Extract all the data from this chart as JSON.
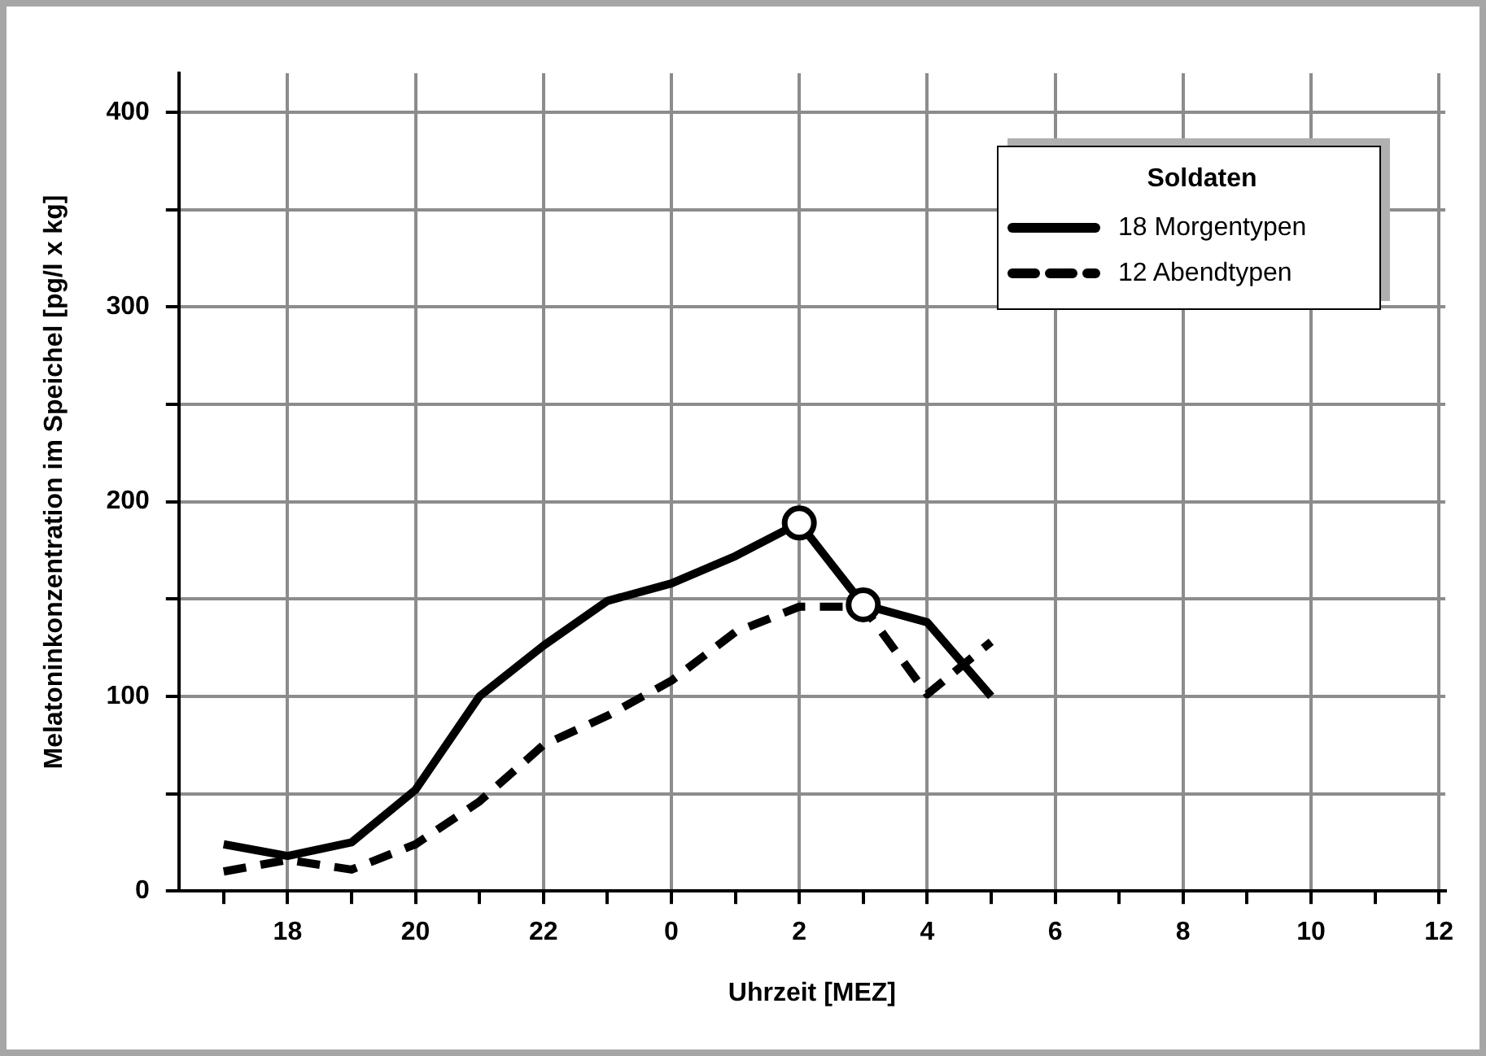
{
  "chart_data": {
    "type": "line",
    "xlabel": "Uhrzeit [MEZ]",
    "ylabel": "Melatoninkonzentration im Speichel [pg/l x kg]",
    "legend_title": "Soldaten",
    "legend": "top right",
    "grid": true,
    "marker": "none",
    "x": [
      "--01-01T17:00",
      "--01-01T18:00",
      "--01-01T19:00",
      "--01-01T20:00",
      "--01-01T21:00",
      "--01-01T22:00",
      "--01-01T23:00",
      "--01-02T00:00",
      "--01-02T01:00",
      "--01-02T02:00",
      "--01-02T03:00",
      "--01-02T04:00",
      "--01-02T05:00"
    ],
    "xlim": [
      "--01-01T16:18",
      "--01-02T12:06"
    ],
    "xticks": [
      {
        "value": "--01-01T17:00",
        "label": null
      },
      {
        "value": "--01-01T18:00",
        "label": "18"
      },
      {
        "value": "--01-01T19:00",
        "label": null
      },
      {
        "value": "--01-01T20:00",
        "label": "20"
      },
      {
        "value": "--01-01T21:00",
        "label": null
      },
      {
        "value": "--01-01T22:00",
        "label": "22"
      },
      {
        "value": "--01-01T23:00",
        "label": null
      },
      {
        "value": "--01-02T00:00",
        "label": "0"
      },
      {
        "value": "--01-02T01:00",
        "label": null
      },
      {
        "value": "--01-02T02:00",
        "label": "2"
      },
      {
        "value": "--01-02T03:00",
        "label": null
      },
      {
        "value": "--01-02T04:00",
        "label": "4"
      },
      {
        "value": "--01-02T05:00",
        "label": null
      },
      {
        "value": "--01-02T06:00",
        "label": "6"
      },
      {
        "value": "--01-02T07:00",
        "label": null
      },
      {
        "value": "--01-02T08:00",
        "label": "8"
      },
      {
        "value": "--01-02T09:00",
        "label": null
      },
      {
        "value": "--01-02T10:00",
        "label": "10"
      },
      {
        "value": "--01-02T11:00",
        "label": null
      },
      {
        "value": "--01-02T12:00",
        "label": "12"
      }
    ],
    "ylim": [
      0,
      420
    ],
    "yticks": [
      0,
      {
        "value": 50,
        "label": null
      },
      100,
      {
        "value": 150,
        "label": null
      },
      200,
      {
        "value": 250,
        "label": null
      },
      300,
      {
        "value": 350,
        "label": null
      },
      400
    ],
    "series": [
      {
        "name": "18 Morgentypen",
        "color": "#000000",
        "line_style": "solid",
        "values": [
          24,
          18,
          25,
          52,
          100,
          126,
          149,
          158,
          172,
          189,
          147,
          138,
          100
        ]
      },
      {
        "name": "12 Abendtypen",
        "color": "#000000",
        "line_style": "dashed",
        "values": [
          10,
          16,
          11,
          24,
          46,
          75,
          90,
          108,
          133,
          146,
          146,
          101,
          128
        ]
      },
      {
        "type": "scatter",
        "color": "#000000",
        "marker": "circle",
        "x": [
          "--01-02T02:00",
          "--01-02T03:00"
        ],
        "values": [
          189,
          147
        ]
      }
    ]
  }
}
